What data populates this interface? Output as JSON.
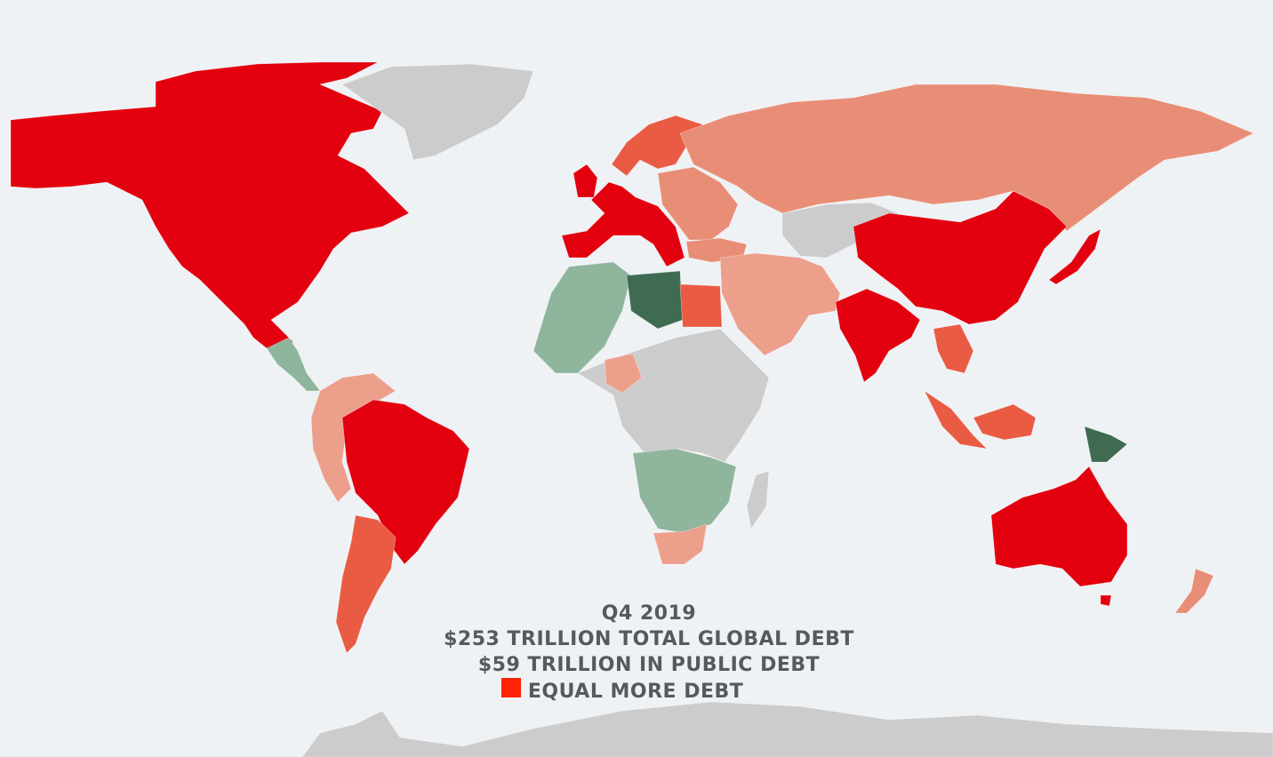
{
  "caption": {
    "period": "Q4 2019",
    "total_debt": "$253 TRILLION TOTAL GLOBAL DEBT",
    "public_debt": "$59 TRILLION IN PUBLIC DEBT"
  },
  "legend": {
    "label": "EQUAL MORE DEBT",
    "swatch_color": "#ff2200"
  },
  "palette": {
    "background": "#eff2f5",
    "highest_debt": "#e3000f",
    "high_debt": "#e95b43",
    "moderate_debt": "#e88e76",
    "lower_debt": "#eca08c",
    "low_debt": "#8fb59c",
    "very_low_debt": "#b7d2c0",
    "lowest_debt": "#3e6b52",
    "no_data": "#cccccc"
  },
  "regions": [
    {
      "name": "north-america",
      "color_key": "highest_debt"
    },
    {
      "name": "greenland",
      "color_key": "no_data"
    },
    {
      "name": "central-america",
      "color_key": "low_debt"
    },
    {
      "name": "brazil",
      "color_key": "highest_debt"
    },
    {
      "name": "andean-countries",
      "color_key": "lower_debt"
    },
    {
      "name": "argentina",
      "color_key": "high_debt"
    },
    {
      "name": "western-europe",
      "color_key": "highest_debt"
    },
    {
      "name": "scandinavia",
      "color_key": "high_debt"
    },
    {
      "name": "eastern-europe",
      "color_key": "moderate_debt"
    },
    {
      "name": "russia",
      "color_key": "moderate_debt"
    },
    {
      "name": "north-africa",
      "color_key": "low_debt"
    },
    {
      "name": "libya",
      "color_key": "lowest_debt"
    },
    {
      "name": "egypt",
      "color_key": "high_debt"
    },
    {
      "name": "sub-saharan-africa",
      "color_key": "no_data"
    },
    {
      "name": "southern-africa",
      "color_key": "low_debt"
    },
    {
      "name": "south-africa",
      "color_key": "lower_debt"
    },
    {
      "name": "middle-east",
      "color_key": "lower_debt"
    },
    {
      "name": "central-asia",
      "color_key": "no_data"
    },
    {
      "name": "china",
      "color_key": "highest_debt"
    },
    {
      "name": "india",
      "color_key": "highest_debt"
    },
    {
      "name": "japan",
      "color_key": "highest_debt"
    },
    {
      "name": "southeast-asia",
      "color_key": "high_debt"
    },
    {
      "name": "papua-new-guinea",
      "color_key": "lowest_debt"
    },
    {
      "name": "australia",
      "color_key": "highest_debt"
    },
    {
      "name": "new-zealand",
      "color_key": "moderate_debt"
    },
    {
      "name": "madagascar",
      "color_key": "no_data"
    },
    {
      "name": "antarctica",
      "color_key": "no_data"
    }
  ]
}
